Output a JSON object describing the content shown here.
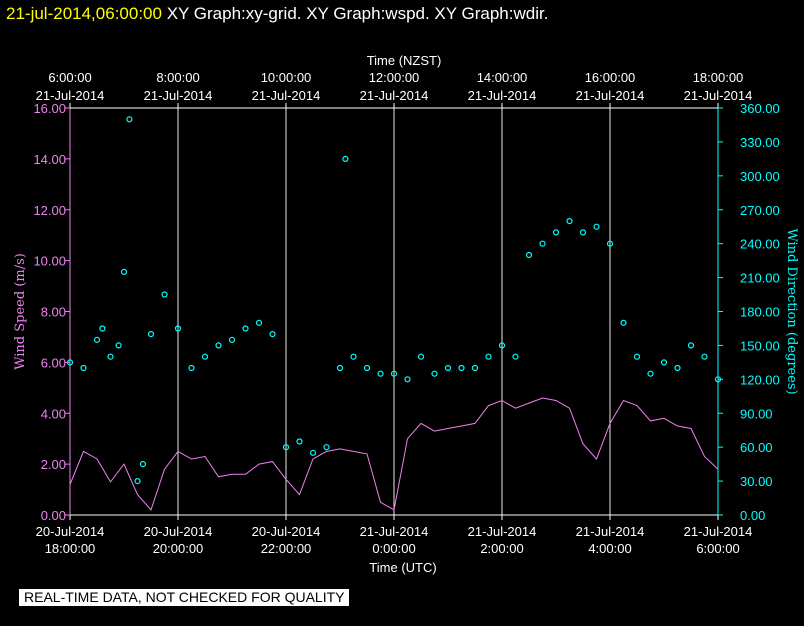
{
  "header": {
    "date": "21-jul-2014,06:00:00",
    "graphs": "XY Graph:xy-grid.  XY Graph:wspd.  XY Graph:wdir."
  },
  "footer_note": "REAL-TIME DATA, NOT CHECKED FOR QUALITY",
  "colors": {
    "background": "#000000",
    "title": "#ffff00",
    "wind_speed": "#ee82ee",
    "wind_direction": "#00ffff",
    "axis_text": "#ffffff",
    "grid": "#ffffff"
  },
  "chart_data": {
    "type": "line",
    "top_axis": {
      "label": "Time (NZST)",
      "ticks": [
        {
          "time": "6:00:00",
          "date": "21-Jul-2014"
        },
        {
          "time": "8:00:00",
          "date": "21-Jul-2014"
        },
        {
          "time": "10:00:00",
          "date": "21-Jul-2014"
        },
        {
          "time": "12:00:00",
          "date": "21-Jul-2014"
        },
        {
          "time": "14:00:00",
          "date": "21-Jul-2014"
        },
        {
          "time": "16:00:00",
          "date": "21-Jul-2014"
        },
        {
          "time": "18:00:00",
          "date": "21-Jul-2014"
        }
      ]
    },
    "bottom_axis": {
      "label": "Time (UTC)",
      "ticks": [
        {
          "date": "20-Jul-2014",
          "time": "18:00:00"
        },
        {
          "date": "20-Jul-2014",
          "time": "20:00:00"
        },
        {
          "date": "20-Jul-2014",
          "time": "22:00:00"
        },
        {
          "date": "21-Jul-2014",
          "time": "0:00:00"
        },
        {
          "date": "21-Jul-2014",
          "time": "2:00:00"
        },
        {
          "date": "21-Jul-2014",
          "time": "4:00:00"
        },
        {
          "date": "21-Jul-2014",
          "time": "6:00:00"
        }
      ],
      "range_hours": [
        0,
        12
      ],
      "start": "20-Jul-2014 18:00:00 UTC"
    },
    "left_axis": {
      "label": "Wind Speed (m/s)",
      "ylim": [
        0,
        16
      ],
      "ticks": [
        "0.00",
        "2.00",
        "4.00",
        "6.00",
        "8.00",
        "10.00",
        "12.00",
        "14.00",
        "16.00"
      ]
    },
    "right_axis": {
      "label": "Wind Direction (degrees)",
      "ylim": [
        0,
        360
      ],
      "ticks": [
        "0.00",
        "30.00",
        "60.00",
        "90.00",
        "120.00",
        "150.00",
        "180.00",
        "210.00",
        "240.00",
        "270.00",
        "300.00",
        "330.00",
        "360.00"
      ]
    },
    "grid": "vertical lines at each 2-hour tick",
    "series": [
      {
        "name": "wspd",
        "axis": "left",
        "style": "line",
        "x_hours": [
          0.0,
          0.25,
          0.5,
          0.75,
          1.0,
          1.25,
          1.5,
          1.75,
          2.0,
          2.25,
          2.5,
          2.75,
          3.0,
          3.25,
          3.5,
          3.75,
          4.0,
          4.25,
          4.5,
          4.75,
          5.0,
          5.25,
          5.5,
          5.75,
          6.0,
          6.25,
          6.5,
          6.75,
          7.0,
          7.25,
          7.5,
          7.75,
          8.0,
          8.25,
          8.5,
          8.75,
          9.0,
          9.25,
          9.5,
          9.75,
          10.0,
          10.25,
          10.5,
          10.75,
          11.0,
          11.25,
          11.5,
          11.75,
          12.0
        ],
        "values": [
          1.2,
          2.5,
          2.2,
          1.3,
          2.0,
          0.8,
          0.2,
          1.8,
          2.5,
          2.2,
          2.3,
          1.5,
          1.6,
          1.6,
          2.0,
          2.1,
          1.4,
          0.8,
          2.2,
          2.5,
          2.6,
          2.5,
          2.4,
          0.5,
          0.2,
          3.0,
          3.6,
          3.3,
          3.4,
          3.5,
          3.6,
          4.3,
          4.5,
          4.2,
          4.4,
          4.6,
          4.5,
          4.2,
          2.8,
          2.2,
          3.6,
          4.5,
          4.3,
          3.7,
          3.8,
          3.5,
          3.4,
          2.3,
          1.8
        ]
      },
      {
        "name": "wdir",
        "axis": "right",
        "style": "circles",
        "x_hours": [
          0.0,
          0.25,
          0.5,
          0.6,
          0.75,
          0.9,
          1.0,
          1.1,
          1.25,
          1.35,
          1.5,
          1.75,
          2.0,
          2.25,
          2.5,
          2.75,
          3.0,
          3.25,
          3.5,
          3.75,
          4.0,
          4.25,
          4.5,
          4.75,
          5.0,
          5.1,
          5.25,
          5.5,
          5.75,
          6.0,
          6.25,
          6.5,
          6.75,
          7.0,
          7.25,
          7.5,
          7.75,
          8.0,
          8.25,
          8.5,
          8.75,
          9.0,
          9.25,
          9.5,
          9.75,
          10.0,
          10.25,
          10.5,
          10.75,
          11.0,
          11.25,
          11.5,
          11.75,
          12.0
        ],
        "values": [
          135,
          130,
          155,
          165,
          140,
          150,
          215,
          350,
          30,
          45,
          160,
          195,
          165,
          130,
          140,
          150,
          155,
          165,
          170,
          160,
          60,
          65,
          55,
          60,
          130,
          315,
          140,
          130,
          125,
          125,
          120,
          140,
          125,
          130,
          130,
          130,
          140,
          150,
          140,
          230,
          240,
          250,
          260,
          250,
          255,
          240,
          170,
          140,
          125,
          135,
          130,
          150,
          140,
          120
        ]
      }
    ]
  }
}
